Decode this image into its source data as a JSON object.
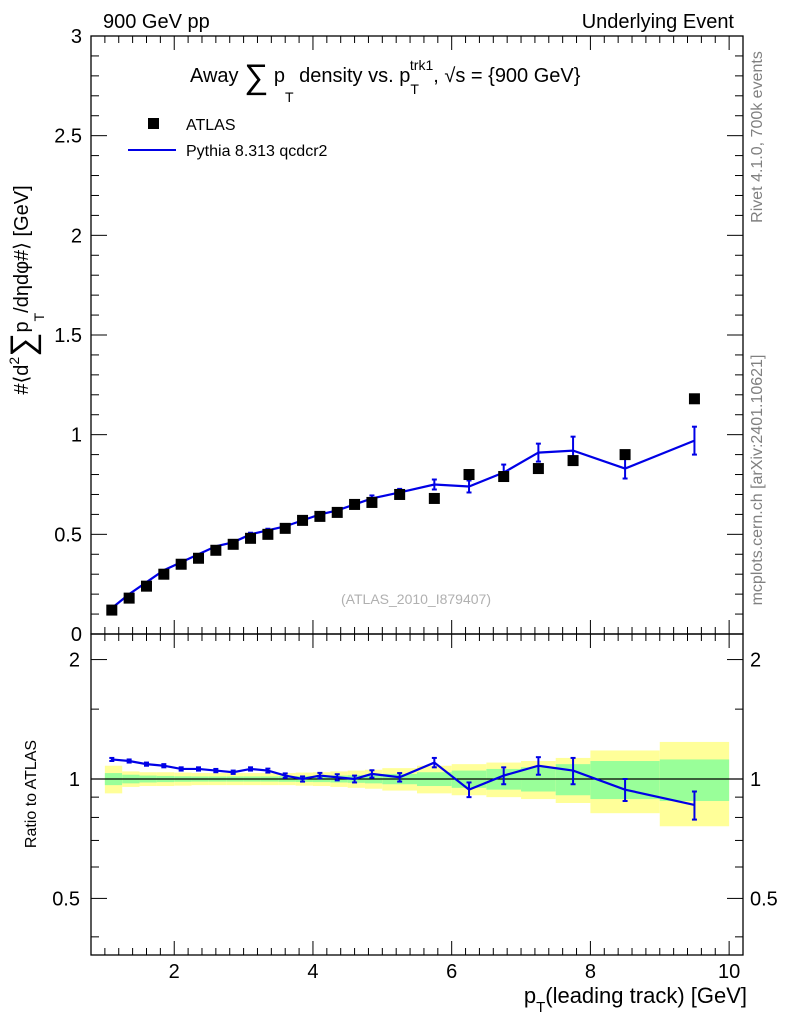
{
  "header": {
    "left_label": "900 GeV pp",
    "right_label": "Underlying Event"
  },
  "side_labels": {
    "rivet": "Rivet 4.1.0,  700k events",
    "mcplots": "mcplots.cern.ch [arXiv:2401.10621]"
  },
  "chart_data": [
    {
      "type": "scatter",
      "panel": "main",
      "title": "Away ∑ p_T density vs. p_T^trk1, √s = {900 GeV}",
      "title_parts": {
        "lead": "Away",
        "sum": "∑",
        "pt": "p",
        "pt_sub": "T",
        "mid": "density vs. p",
        "trk_sub": "T",
        "trk_sup": "trk1",
        "tail": ", √s = {900 GeV}"
      },
      "ylabel": "#⟨d² ∑ p_T /dηdφ#⟩ [GeV]",
      "ylabel_parts": {
        "lead": "#⟨d",
        "sup2": "2",
        "sum": "∑",
        "p": "p",
        "sub": "T",
        "tail": "/dηdφ#⟩ [GeV]"
      },
      "xlim": [
        0.8,
        10.2
      ],
      "ylim": [
        0,
        3
      ],
      "y_ticks": [
        "0",
        "0.5",
        "1",
        "1.5",
        "2",
        "2.5",
        "3"
      ],
      "analysis_label": "(ATLAS_2010_I879407)",
      "legend": [
        "ATLAS",
        "Pythia 8.313 qcdcr2"
      ],
      "series": [
        {
          "name": "ATLAS",
          "x": [
            1.1,
            1.35,
            1.6,
            1.85,
            2.1,
            2.35,
            2.6,
            2.85,
            3.1,
            3.35,
            3.6,
            3.85,
            4.1,
            4.35,
            4.6,
            4.85,
            5.25,
            5.75,
            6.25,
            6.75,
            7.25,
            7.75,
            8.5,
            9.5
          ],
          "y": [
            0.12,
            0.18,
            0.24,
            0.3,
            0.35,
            0.38,
            0.42,
            0.45,
            0.48,
            0.5,
            0.53,
            0.57,
            0.59,
            0.61,
            0.65,
            0.66,
            0.7,
            0.68,
            0.8,
            0.79,
            0.83,
            0.87,
            0.9,
            1.18
          ]
        },
        {
          "name": "Pythia 8.313 qcdcr2",
          "x": [
            1.1,
            1.35,
            1.6,
            1.85,
            2.1,
            2.35,
            2.6,
            2.85,
            3.1,
            3.35,
            3.6,
            3.85,
            4.1,
            4.35,
            4.6,
            4.85,
            5.25,
            5.75,
            6.25,
            6.75,
            7.25,
            7.75,
            8.5,
            9.5
          ],
          "y": [
            0.13,
            0.2,
            0.26,
            0.32,
            0.36,
            0.4,
            0.44,
            0.46,
            0.5,
            0.52,
            0.54,
            0.57,
            0.6,
            0.62,
            0.65,
            0.68,
            0.71,
            0.75,
            0.74,
            0.81,
            0.91,
            0.92,
            0.83,
            0.97
          ],
          "err": [
            0.005,
            0.005,
            0.005,
            0.005,
            0.006,
            0.006,
            0.007,
            0.007,
            0.008,
            0.008,
            0.009,
            0.009,
            0.01,
            0.01,
            0.012,
            0.015,
            0.018,
            0.025,
            0.03,
            0.04,
            0.045,
            0.07,
            0.05,
            0.07
          ]
        }
      ]
    },
    {
      "type": "line",
      "panel": "ratio",
      "ylabel": "Ratio to ATLAS",
      "xlabel": "p_T (leading track) [GeV]",
      "xlabel_parts": {
        "p": "p",
        "sub": "T",
        "tail": "(leading track) [GeV]"
      },
      "xlim": [
        0.8,
        10.2
      ],
      "ylim": [
        0.36,
        2.32
      ],
      "y_ticks": [
        "0.5",
        "1",
        "2"
      ],
      "x_ticks": [
        "2",
        "4",
        "6",
        "8",
        "10"
      ],
      "bands": {
        "bin_edges": [
          1.0,
          1.25,
          1.5,
          1.75,
          2.0,
          2.25,
          2.5,
          2.75,
          3.0,
          3.25,
          3.5,
          3.75,
          4.0,
          4.25,
          4.5,
          4.75,
          5.0,
          5.5,
          6.0,
          6.5,
          7.0,
          7.5,
          8.0,
          9.0,
          10.0
        ],
        "stat_half": [
          0.035,
          0.025,
          0.02,
          0.018,
          0.016,
          0.015,
          0.015,
          0.015,
          0.015,
          0.015,
          0.016,
          0.017,
          0.018,
          0.02,
          0.022,
          0.025,
          0.03,
          0.04,
          0.05,
          0.06,
          0.07,
          0.09,
          0.11,
          0.12
        ],
        "total_half": [
          0.08,
          0.045,
          0.04,
          0.04,
          0.038,
          0.035,
          0.035,
          0.035,
          0.035,
          0.035,
          0.035,
          0.038,
          0.04,
          0.045,
          0.05,
          0.055,
          0.065,
          0.08,
          0.09,
          0.1,
          0.11,
          0.13,
          0.18,
          0.24
        ]
      },
      "series": [
        {
          "name": "Pythia 8.313 qcdcr2 / ATLAS",
          "x": [
            1.1,
            1.35,
            1.6,
            1.85,
            2.1,
            2.35,
            2.6,
            2.85,
            3.1,
            3.35,
            3.6,
            3.85,
            4.1,
            4.35,
            4.6,
            4.85,
            5.25,
            5.75,
            6.25,
            6.75,
            7.25,
            7.75,
            8.5,
            9.5
          ],
          "y": [
            1.12,
            1.11,
            1.09,
            1.08,
            1.06,
            1.06,
            1.05,
            1.04,
            1.06,
            1.05,
            1.02,
            1.0,
            1.02,
            1.01,
            1.0,
            1.03,
            1.01,
            1.1,
            0.94,
            1.02,
            1.08,
            1.05,
            0.94,
            0.86
          ],
          "err": [
            0.01,
            0.01,
            0.01,
            0.01,
            0.01,
            0.01,
            0.01,
            0.01,
            0.01,
            0.012,
            0.013,
            0.015,
            0.016,
            0.018,
            0.02,
            0.022,
            0.025,
            0.03,
            0.04,
            0.05,
            0.055,
            0.08,
            0.06,
            0.07
          ]
        }
      ]
    }
  ]
}
